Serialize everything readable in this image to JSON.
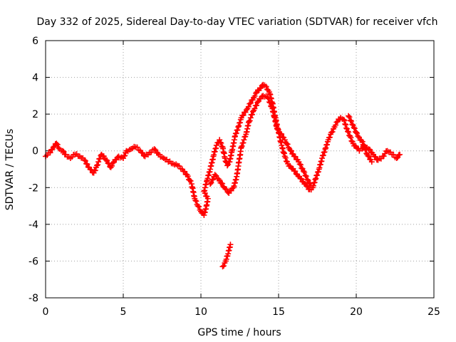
{
  "chart_data": {
    "type": "scatter",
    "title": "Day 332 of 2025, Sidereal Day-to-day VTEC variation (SDTVAR) for receiver vfch",
    "xlabel": "GPS time / hours",
    "ylabel": "SDTVAR / TECUs",
    "xlim": [
      0,
      25
    ],
    "ylim": [
      -8,
      6
    ],
    "x_ticks": [
      0,
      5,
      10,
      15,
      20,
      25
    ],
    "y_ticks": [
      -8,
      -6,
      -4,
      -2,
      0,
      2,
      4,
      6
    ],
    "x_tick_labels": [
      "0",
      "5",
      "10",
      "15",
      "20",
      "25"
    ],
    "y_tick_labels": [
      "-8",
      "-6",
      "-4",
      "-2",
      "0",
      "2",
      "4",
      "6"
    ],
    "grid": true,
    "marker": "plus",
    "color": "#ff0000",
    "series": [
      {
        "name": "vfch",
        "points": [
          [
            0.0,
            -0.3
          ],
          [
            0.3,
            -0.1
          ],
          [
            0.5,
            0.2
          ],
          [
            0.7,
            0.4
          ],
          [
            0.9,
            0.1
          ],
          [
            1.1,
            0.0
          ],
          [
            1.3,
            -0.2
          ],
          [
            1.6,
            -0.4
          ],
          [
            1.9,
            -0.2
          ],
          [
            2.2,
            -0.3
          ],
          [
            2.5,
            -0.5
          ],
          [
            2.8,
            -0.9
          ],
          [
            3.1,
            -1.2
          ],
          [
            3.3,
            -0.8
          ],
          [
            3.6,
            -0.2
          ],
          [
            3.9,
            -0.5
          ],
          [
            4.2,
            -0.9
          ],
          [
            4.4,
            -0.6
          ],
          [
            4.7,
            -0.3
          ],
          [
            5.0,
            -0.4
          ],
          [
            5.2,
            0.0
          ],
          [
            5.5,
            0.1
          ],
          [
            5.8,
            0.2
          ],
          [
            6.1,
            0.0
          ],
          [
            6.4,
            -0.3
          ],
          [
            6.7,
            -0.1
          ],
          [
            7.0,
            0.1
          ],
          [
            7.3,
            -0.2
          ],
          [
            7.6,
            -0.4
          ],
          [
            7.9,
            -0.6
          ],
          [
            8.2,
            -0.7
          ],
          [
            8.5,
            -0.8
          ],
          [
            8.8,
            -1.0
          ],
          [
            9.1,
            -1.3
          ],
          [
            9.4,
            -1.8
          ],
          [
            9.6,
            -2.6
          ],
          [
            9.8,
            -3.0
          ],
          [
            10.0,
            -3.3
          ],
          [
            10.2,
            -3.5
          ],
          [
            10.35,
            -3.0
          ],
          [
            10.45,
            -2.6
          ],
          [
            10.2,
            -2.2
          ],
          [
            10.4,
            -1.6
          ],
          [
            10.6,
            -1.0
          ],
          [
            10.8,
            -0.3
          ],
          [
            11.0,
            0.3
          ],
          [
            11.2,
            0.6
          ],
          [
            11.4,
            0.2
          ],
          [
            11.55,
            -0.4
          ],
          [
            11.7,
            -0.8
          ],
          [
            11.85,
            -0.6
          ],
          [
            12.0,
            0.0
          ],
          [
            12.2,
            0.8
          ],
          [
            12.4,
            1.3
          ],
          [
            12.6,
            1.8
          ],
          [
            12.8,
            2.1
          ],
          [
            13.0,
            2.3
          ],
          [
            13.2,
            2.6
          ],
          [
            13.4,
            2.9
          ],
          [
            13.6,
            3.2
          ],
          [
            13.8,
            3.4
          ],
          [
            14.0,
            3.6
          ],
          [
            14.2,
            3.5
          ],
          [
            14.4,
            3.2
          ],
          [
            14.6,
            2.6
          ],
          [
            14.8,
            1.8
          ],
          [
            15.0,
            1.0
          ],
          [
            15.2,
            0.3
          ],
          [
            15.4,
            -0.3
          ],
          [
            15.6,
            -0.7
          ],
          [
            15.8,
            -0.9
          ],
          [
            16.0,
            -1.1
          ],
          [
            16.2,
            -1.3
          ],
          [
            16.4,
            -1.5
          ],
          [
            16.6,
            -1.7
          ],
          [
            16.8,
            -1.9
          ],
          [
            17.0,
            -2.1
          ],
          [
            17.2,
            -2.0
          ],
          [
            17.4,
            -1.5
          ],
          [
            17.6,
            -1.0
          ],
          [
            17.8,
            -0.4
          ],
          [
            18.0,
            0.1
          ],
          [
            18.2,
            0.6
          ],
          [
            18.4,
            1.0
          ],
          [
            18.6,
            1.3
          ],
          [
            18.8,
            1.6
          ],
          [
            19.0,
            1.8
          ],
          [
            19.2,
            1.7
          ],
          [
            19.4,
            1.2
          ],
          [
            19.6,
            0.8
          ],
          [
            19.8,
            0.4
          ],
          [
            20.0,
            0.2
          ],
          [
            20.2,
            0.0
          ],
          [
            20.5,
            0.2
          ],
          [
            20.8,
            0.1
          ],
          [
            21.1,
            -0.2
          ],
          [
            21.4,
            -0.5
          ],
          [
            21.7,
            -0.3
          ],
          [
            22.0,
            0.0
          ],
          [
            22.3,
            -0.2
          ],
          [
            22.6,
            -0.4
          ],
          [
            22.8,
            -0.2
          ],
          [
            10.6,
            -1.8
          ],
          [
            10.9,
            -1.3
          ],
          [
            11.2,
            -1.6
          ],
          [
            11.5,
            -2.0
          ],
          [
            11.8,
            -2.3
          ],
          [
            12.1,
            -2.0
          ],
          [
            12.3,
            -1.4
          ],
          [
            12.6,
            0.2
          ],
          [
            12.9,
            0.9
          ],
          [
            13.1,
            1.6
          ],
          [
            13.4,
            2.2
          ],
          [
            13.7,
            2.7
          ],
          [
            14.0,
            3.0
          ],
          [
            14.3,
            2.9
          ],
          [
            14.6,
            2.3
          ],
          [
            14.9,
            1.2
          ],
          [
            15.4,
            0.6
          ],
          [
            15.7,
            0.1
          ],
          [
            16.0,
            -0.3
          ],
          [
            16.3,
            -0.6
          ],
          [
            16.6,
            -1.1
          ],
          [
            16.9,
            -1.6
          ],
          [
            17.1,
            -1.9
          ],
          [
            11.4,
            -6.3
          ],
          [
            11.6,
            -6.0
          ],
          [
            11.75,
            -5.6
          ],
          [
            11.9,
            -5.1
          ],
          [
            19.5,
            1.9
          ],
          [
            19.8,
            1.4
          ],
          [
            20.1,
            0.8
          ],
          [
            20.4,
            0.5
          ],
          [
            20.7,
            -0.2
          ],
          [
            21.0,
            -0.6
          ]
        ]
      }
    ]
  }
}
